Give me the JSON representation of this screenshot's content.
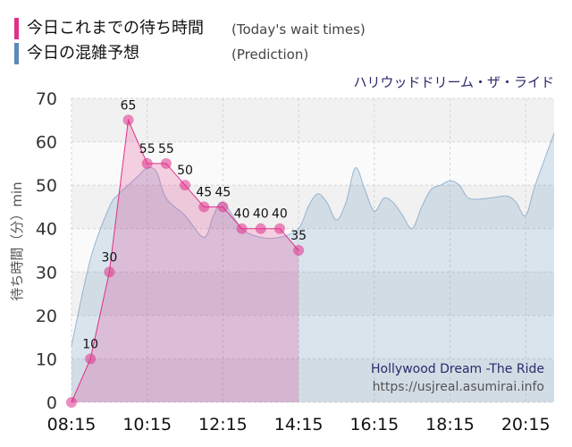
{
  "legend": {
    "today_label": "今日これまでの待ち時間",
    "today_note": "(Today's wait times)",
    "today_color": "#e0308a",
    "prediction_label": "今日の混雑予想",
    "prediction_note": "(Prediction)",
    "prediction_color": "#5a8ab8"
  },
  "chart_data": {
    "type": "area",
    "title": "ハリウッドドリーム・ザ・ライド",
    "ylabel": "待ち時間（分）min",
    "ylim": [
      0,
      70
    ],
    "yticks": [
      0,
      10,
      20,
      30,
      40,
      50,
      60,
      70
    ],
    "xlim": [
      "08:15",
      "21:00"
    ],
    "xticks": [
      "08:15",
      "10:15",
      "12:15",
      "14:15",
      "16:15",
      "18:15",
      "20:15"
    ],
    "grid": true,
    "series": [
      {
        "name": "今日これまでの待ち時間",
        "style": "area-markers",
        "color": "#e0308a",
        "x": [
          "08:15",
          "08:45",
          "09:15",
          "09:45",
          "10:15",
          "10:45",
          "11:15",
          "11:45",
          "12:15",
          "12:45",
          "13:15",
          "13:45",
          "14:15"
        ],
        "y": [
          0,
          10,
          30,
          65,
          55,
          55,
          50,
          45,
          45,
          40,
          40,
          40,
          35
        ],
        "labels": [
          "",
          "10",
          "30",
          "65",
          "55",
          "55",
          "50",
          "45",
          "45",
          "40",
          "40",
          "40",
          "35"
        ]
      },
      {
        "name": "今日の混雑予想",
        "style": "area",
        "color": "#5a8ab8",
        "x": [
          "08:15",
          "08:45",
          "09:15",
          "09:30",
          "09:45",
          "10:00",
          "10:15",
          "10:30",
          "10:45",
          "11:15",
          "11:45",
          "12:00",
          "12:15",
          "12:45",
          "13:15",
          "13:45",
          "14:15",
          "14:30",
          "14:45",
          "15:00",
          "15:15",
          "15:30",
          "15:45",
          "16:00",
          "16:15",
          "16:30",
          "16:45",
          "17:00",
          "17:15",
          "17:30",
          "17:45",
          "18:00",
          "18:15",
          "18:30",
          "18:45",
          "19:15",
          "19:45",
          "20:00",
          "20:15",
          "20:30",
          "21:00"
        ],
        "y": [
          13,
          33,
          45,
          48,
          50,
          52,
          54,
          53,
          47,
          43,
          38,
          43,
          46,
          40,
          38,
          38,
          40,
          45,
          48,
          46,
          42,
          46,
          54,
          49,
          44,
          47,
          46,
          43,
          40,
          45,
          49,
          50,
          51,
          50,
          47,
          47,
          47.5,
          46,
          43,
          50,
          62
        ]
      }
    ]
  },
  "credit": {
    "ride_name": "Hollywood Dream -The Ride",
    "url": "https://usjreal.asumirai.info"
  }
}
